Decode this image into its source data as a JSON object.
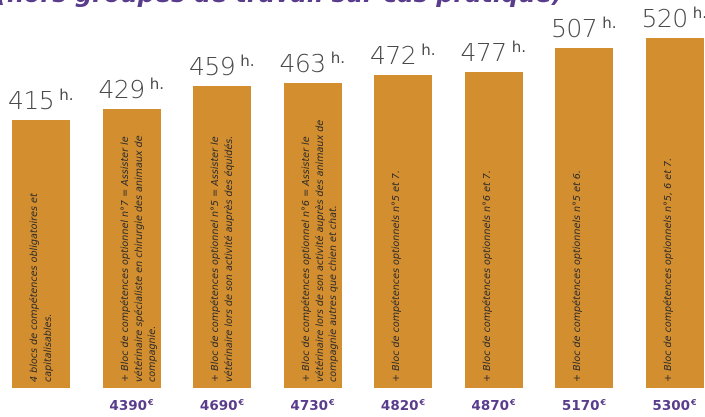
{
  "header": {
    "title": "(hors groupes de travail sur cas pratique)"
  },
  "chart_data": {
    "type": "bar",
    "title": "(hors groupes de travail sur cas pratique)",
    "xlabel": "",
    "ylabel": "",
    "hour_unit": "h.",
    "currency": "€",
    "categories": [
      "4 blocs de compétences obligatoires et capitalisables.",
      "+ Bloc de compétences optionnel n°7 = Assister le vétérinaire spécialiste en chirurgie des animaux de compagnie.",
      "+ Bloc de compétences optionnel n°5 = Assister le vétérinaire lors de son activité auprès des équidés.",
      "+ Bloc de compétences optionnel n°6 = Assister le vétérinaire lors de son activité auprès des animaux de compagnie autres que chien et chat.",
      "+ Bloc de compétences optionnels n°5 et 7.",
      "+ Bloc de compétences optionnels n°6 et 7.",
      "+ Bloc de compétences optionnels n°5 et 6.",
      "+ Bloc de compétences optionnels n°5, 6 et 7."
    ],
    "series": [
      {
        "values": [
          415,
          429,
          459,
          463,
          472,
          477,
          507,
          520
        ]
      }
    ],
    "prices": [
      "",
      "4390",
      "4690",
      "4730",
      "4820",
      "4870",
      "5170",
      "5300"
    ],
    "colors": {
      "bar": "#d38e30",
      "price": "#5a3c8c",
      "title": "#5a3c8c",
      "hours": "#4a4a4a"
    }
  }
}
